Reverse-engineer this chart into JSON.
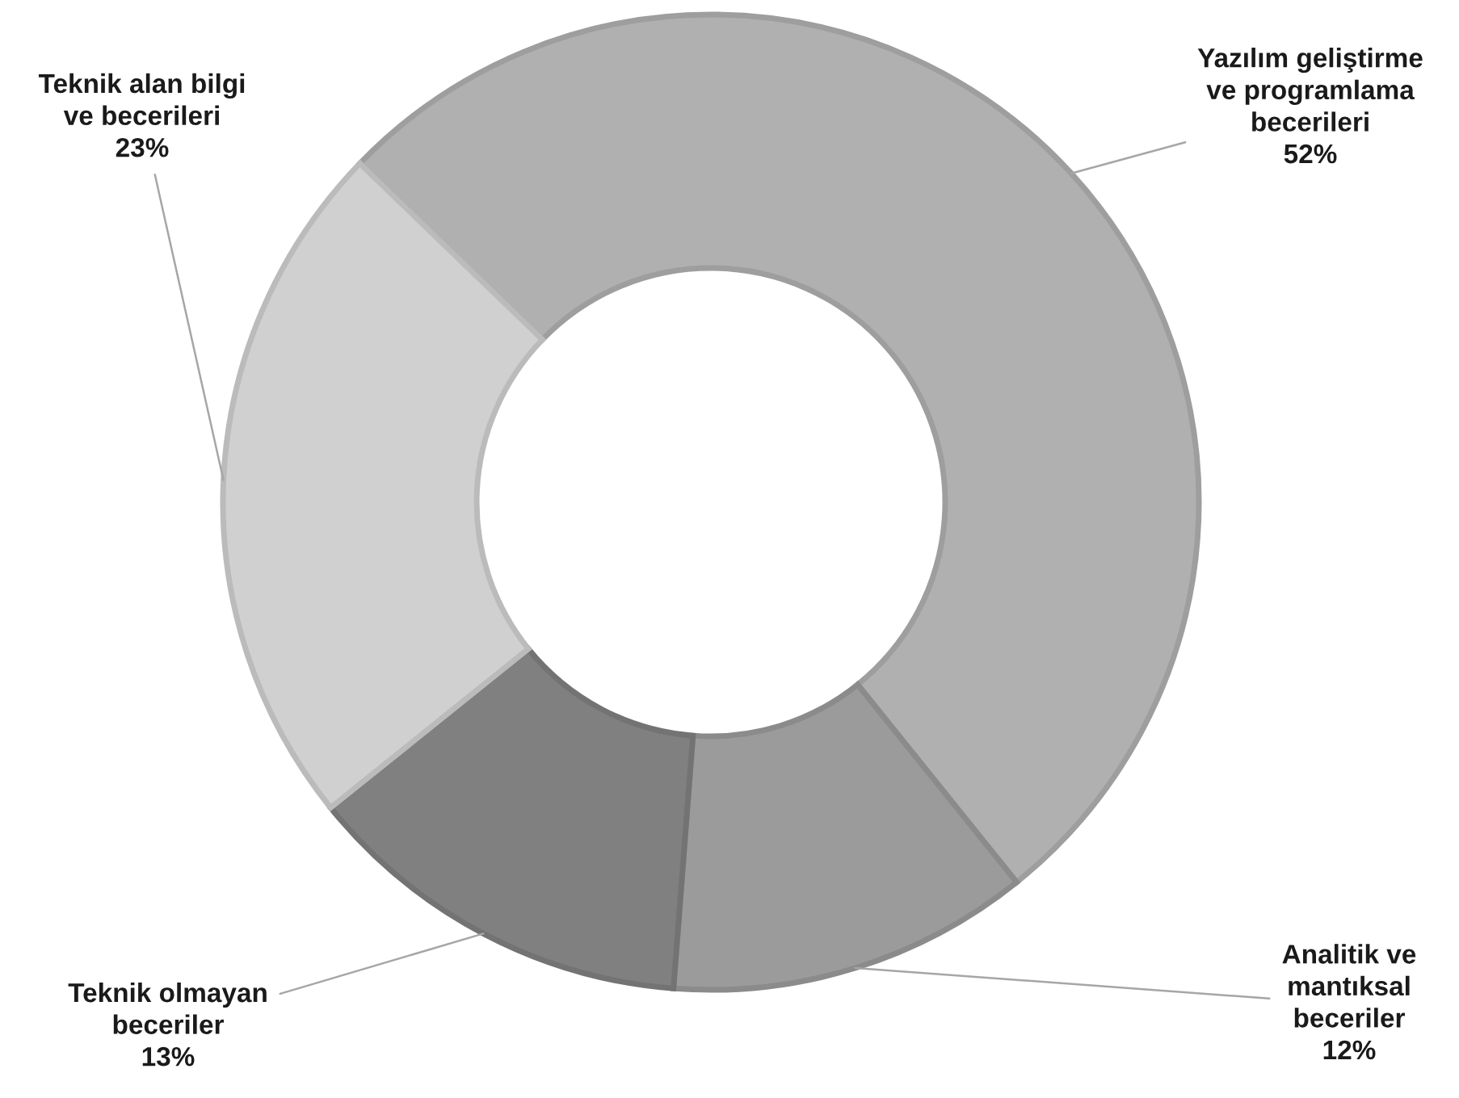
{
  "chart_data": {
    "type": "donut",
    "categories": [
      "Yazılım geliştirme\nve programlama\nbecerileri",
      "Analitik ve\nmantıksal\nbeceriler",
      "Teknik olmayan\nbeceriler",
      "Teknik alan bilgi\nve becerileri"
    ],
    "values": [
      52,
      12,
      13,
      23
    ],
    "value_labels": [
      "52%",
      "12%",
      "13%",
      "23%"
    ],
    "colors": [
      "#b0b0b0",
      "#9b9b9b",
      "#808080",
      "#d0d0d0"
    ]
  }
}
